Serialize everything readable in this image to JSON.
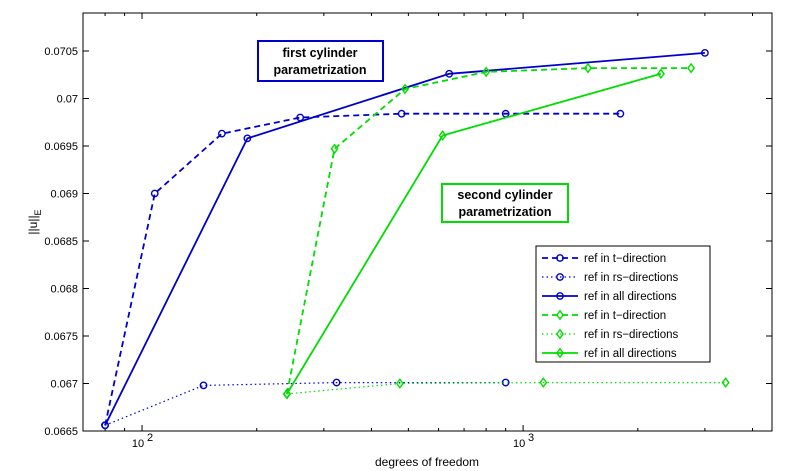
{
  "chart_data": {
    "type": "line",
    "xscale": "log",
    "xlabel": "degrees of freedom",
    "ylabel_main": "||u||",
    "ylabel_sub": "E",
    "xlim": [
      70,
      4500
    ],
    "ylim": [
      0.0665,
      0.0709
    ],
    "y_ticks": [
      0.0665,
      0.067,
      0.0675,
      0.068,
      0.0685,
      0.069,
      0.0695,
      0.07,
      0.0705
    ],
    "y_tick_labels": [
      "0.0665",
      "0.067",
      "0.0675",
      "0.068",
      "0.0685",
      "0.069",
      "0.0695",
      "0.07",
      "0.0705"
    ],
    "x_ticks": [
      {
        "value": 100,
        "base": "10",
        "exp": "2"
      },
      {
        "value": 1000,
        "base": "10",
        "exp": "3"
      }
    ],
    "grid": false,
    "legend_position": "lower-right",
    "series": [
      {
        "name": "ref in t−direction",
        "color": "#0000cc",
        "dash": "dashed",
        "marker": "circle",
        "x": [
          80,
          108,
          162,
          260,
          480,
          900,
          1800
        ],
        "y": [
          0.06656,
          0.069,
          0.06963,
          0.0698,
          0.06984,
          0.06984,
          0.06984
        ]
      },
      {
        "name": "ref in rs−directions",
        "color": "#0000cc",
        "dash": "dotted",
        "marker": "circle",
        "x": [
          80,
          145,
          324,
          900
        ],
        "y": [
          0.06656,
          0.06698,
          0.06701,
          0.06701
        ]
      },
      {
        "name": "ref in all directions",
        "color": "#0000cc",
        "dash": "solid",
        "marker": "circle",
        "x": [
          80,
          189,
          640,
          3000
        ],
        "y": [
          0.06656,
          0.06958,
          0.07026,
          0.07048
        ]
      },
      {
        "name": "ref in t−direction",
        "color": "#00dd00",
        "dash": "dashed",
        "marker": "diamond",
        "x": [
          240,
          320,
          490,
          800,
          1480,
          2760
        ],
        "y": [
          0.06689,
          0.06947,
          0.0701,
          0.07028,
          0.07032,
          0.07032
        ]
      },
      {
        "name": "ref in rs−directions",
        "color": "#00dd00",
        "dash": "dotted",
        "marker": "diamond",
        "x": [
          240,
          475,
          1130,
          3400
        ],
        "y": [
          0.06689,
          0.067,
          0.06701,
          0.06701
        ]
      },
      {
        "name": "ref in all directions",
        "color": "#00dd00",
        "dash": "solid",
        "marker": "diamond",
        "x": [
          240,
          615,
          2300
        ],
        "y": [
          0.06689,
          0.06961,
          0.07026
        ]
      }
    ],
    "annotations": [
      {
        "lines": [
          "first cylinder",
          "parametrization"
        ],
        "color": "#0000cc"
      },
      {
        "lines": [
          "second cylinder",
          "parametrization"
        ],
        "color": "#00dd00"
      }
    ]
  }
}
